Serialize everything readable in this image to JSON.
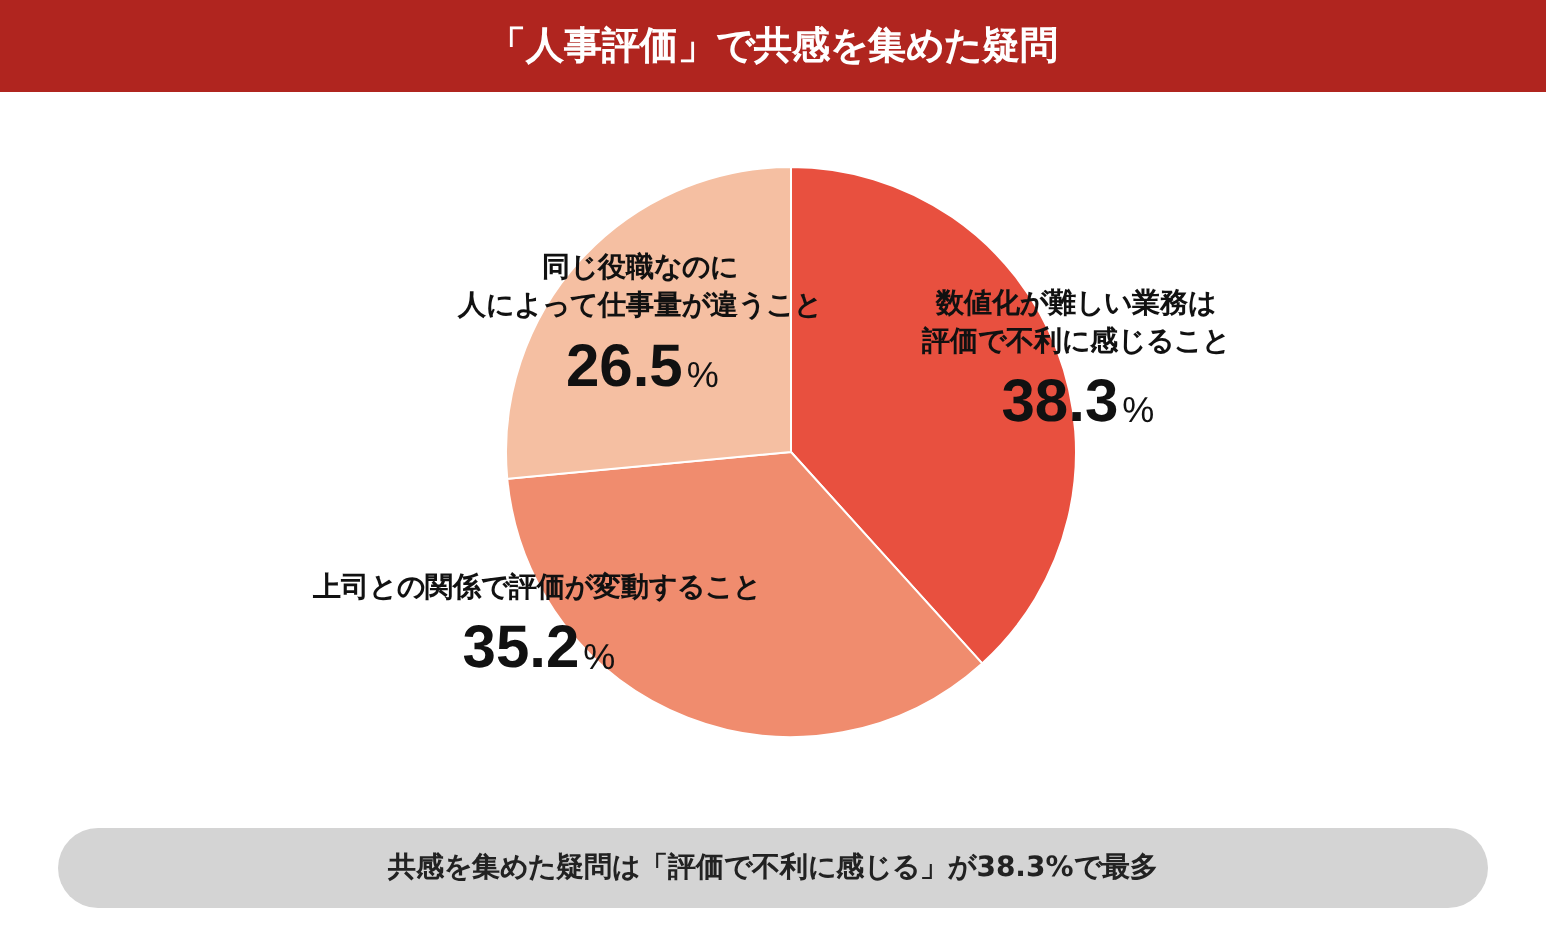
{
  "chart_data": {
    "type": "pie",
    "title": "「人事評価」で共感を集めた疑問",
    "categories": [
      "数値化が難しい業務は評価で不利に感じること",
      "上司との関係で評価が変動すること",
      "同じ役職なのに人によって仕事量が違うこと"
    ],
    "values": [
      38.3,
      35.2,
      26.5
    ],
    "colors": [
      "#e8503f",
      "#f08c6e",
      "#f5bfa2"
    ],
    "value_labels": [
      "38.3%",
      "35.2%",
      "26.5%"
    ],
    "legend": false,
    "annotations": [
      "共感を集めた疑問は「評価で不利に感じる」が38.3%で最多"
    ]
  }
}
